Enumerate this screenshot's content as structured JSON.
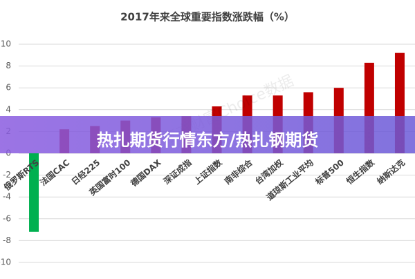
{
  "chart_data": {
    "type": "bar",
    "title": "2017年来全球重要指数涨跌幅（%）",
    "categories": [
      "俄罗斯RTS",
      "法国CAC",
      "日经225",
      "英国富时100",
      "德国DAX",
      "深证成指",
      "上证指数",
      "南非综合",
      "台湾加权",
      "道琼斯工业平均",
      "标普500",
      "恒生指数",
      "纳斯达克"
    ],
    "values": [
      -7.2,
      2.2,
      2.5,
      3.0,
      3.3,
      3.4,
      4.3,
      5.3,
      5.3,
      5.6,
      6.0,
      8.3,
      9.2
    ],
    "color": "#c00000",
    "negative_color": "#00b050",
    "ylim": [
      -10,
      10
    ],
    "yticks": [
      -10,
      -8,
      -6,
      -4,
      -2,
      0,
      2,
      4,
      6,
      8,
      10
    ],
    "grid": true,
    "watermark": "东方财富Choice数据"
  },
  "banner": {
    "text": "热扎期货行情东方/热扎钢期货"
  }
}
